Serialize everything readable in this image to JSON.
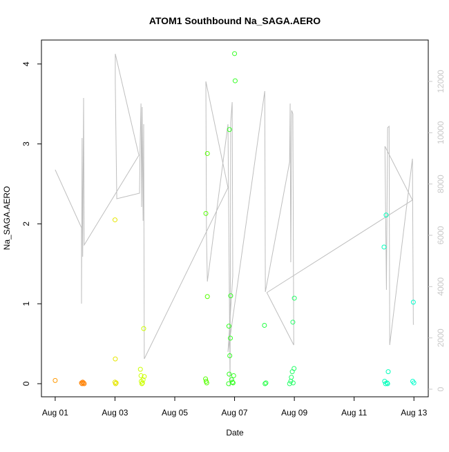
{
  "chart_data": {
    "type": "scatter",
    "title": "ATOM1 Southbound Na_SAGA.AERO",
    "x_label": "Date",
    "y_label": "Na_SAGA.AERO",
    "xlim": [
      -0.46,
      12.48
    ],
    "xticks": [
      {
        "value": 0,
        "label": "Aug 01"
      },
      {
        "value": 2,
        "label": "Aug 03"
      },
      {
        "value": 4,
        "label": "Aug 05"
      },
      {
        "value": 6,
        "label": "Aug 07"
      },
      {
        "value": 8,
        "label": "Aug 09"
      },
      {
        "value": 10,
        "label": "Aug 11"
      },
      {
        "value": 12,
        "label": "Aug 13"
      }
    ],
    "ylim": [
      -0.164,
      4.3
    ],
    "yticks": [
      0,
      1,
      2,
      3,
      4
    ],
    "y2lim": [
      -296,
      13613
    ],
    "y2ticks": [
      0,
      2000,
      4000,
      6000,
      8000,
      10000,
      12000
    ],
    "y2_tick_color": "#c8c8c8",
    "series": [
      {
        "type": "line",
        "axis": "y2",
        "color": "#bebebe",
        "x": [
          0,
          0.88,
          0.88,
          0.9,
          0.92,
          0.95,
          0.97,
          2.8,
          2.01,
          2.01,
          2.06,
          2.82,
          2.84,
          2.87,
          2.89,
          2.91,
          2.94,
          2.96,
          2.98,
          5.78,
          5.04,
          5.06,
          5.09,
          5.78,
          5.85,
          5.87,
          5.92,
          5.94,
          5.78,
          7.01,
          7.03,
          7.84,
          7.86,
          7.88,
          7.91,
          7.95,
          7.98,
          7.08,
          11.95,
          11.03,
          11.08,
          11.12,
          11.17,
          11.19,
          11.95,
          11.98,
          12.0
        ],
        "values": [
          8555,
          6295,
          3336,
          9793,
          5165,
          11353,
          5623,
          9120,
          13075,
          11945,
          7425,
          7641,
          9524,
          11138,
          7103,
          11003,
          6565,
          10331,
          1184,
          7856,
          11999,
          6026,
          4197,
          10331,
          108,
          10385,
          11192,
          4412,
          1453,
          11622,
          3793,
          8851,
          11138,
          4950,
          10869,
          10735,
          1722,
          3766,
          7372,
          9470,
          3874,
          10197,
          10251,
          1722,
          8986,
          2529,
          2529
        ]
      },
      {
        "color": "#ff9900",
        "x": [
          0
        ],
        "values": [
          0.04
        ]
      },
      {
        "color": "#ff8000",
        "x": [
          0.88,
          0.9,
          0.92,
          0.95,
          0.97
        ],
        "values": [
          0.01,
          0.0,
          0.02,
          0.01,
          0.0
        ]
      },
      {
        "color": "#e6e600",
        "x": [
          2.0,
          2.01,
          2.0,
          2.02,
          2.04
        ],
        "values": [
          2.05,
          0.31,
          0.02,
          0.0,
          0.01
        ]
      },
      {
        "color": "#ccff00",
        "x": [
          2.85,
          2.87,
          2.88,
          2.9,
          2.92,
          2.94,
          2.96,
          2.98
        ],
        "values": [
          0.18,
          0.1,
          0.03,
          0.0,
          0.01,
          0.05,
          0.69,
          0.09
        ]
      },
      {
        "color": "#55ff00",
        "x": [
          5.04,
          5.09,
          5.09,
          5.03,
          5.05,
          5.07
        ],
        "values": [
          2.13,
          2.88,
          1.09,
          0.06,
          0.03,
          0.01
        ]
      },
      {
        "color": "#33ff22",
        "x": [
          5.83,
          6.0,
          6.02,
          5.87,
          5.81,
          5.86,
          5.84,
          5.82,
          5.9,
          5.97,
          5.93,
          5.8,
          5.95
        ],
        "values": [
          3.18,
          4.13,
          3.79,
          1.1,
          0.72,
          0.57,
          0.35,
          0.12,
          0.05,
          0.1,
          0.02,
          0.0,
          0.01
        ]
      },
      {
        "color": "#22ff44",
        "x": [
          7.0,
          7.02,
          7.05
        ],
        "values": [
          0.73,
          0.0,
          0.01
        ]
      },
      {
        "color": "#22ff66",
        "x": [
          8.0,
          7.95,
          7.99,
          7.93,
          7.9,
          7.88,
          7.96,
          7.84
        ],
        "values": [
          1.07,
          0.77,
          0.19,
          0.15,
          0.08,
          0.03,
          0.01,
          0.0
        ]
      },
      {
        "color": "#00ffbb",
        "x": [
          11.07,
          11.0,
          11.14,
          11.02,
          11.05,
          11.1,
          11.12
        ],
        "values": [
          2.11,
          1.71,
          0.15,
          0.03,
          0.0,
          0.01,
          0.0
        ]
      },
      {
        "color": "#00ffcc",
        "x": [
          11.98,
          11.96,
          12.0
        ],
        "values": [
          1.02,
          0.03,
          0.01
        ]
      }
    ]
  }
}
